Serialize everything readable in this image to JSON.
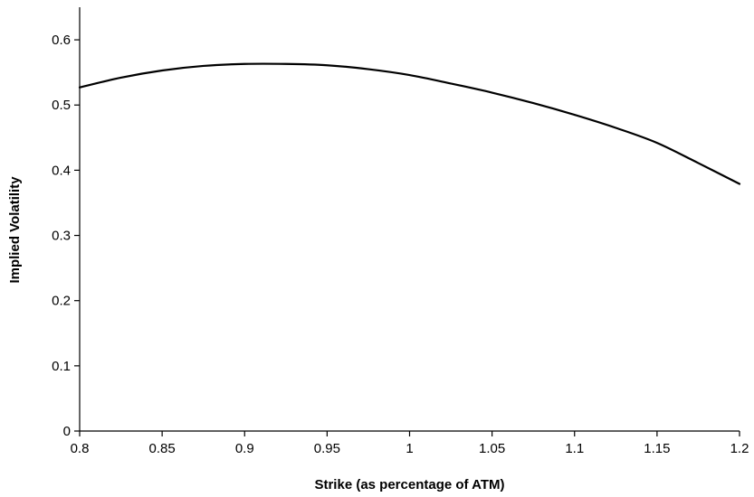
{
  "chart_data": {
    "type": "line",
    "xlabel": "Strike (as percentage of ATM)",
    "ylabel": "Implied Volatility",
    "xlim": [
      0.8,
      1.2
    ],
    "ylim": [
      0,
      0.65
    ],
    "x_ticks": [
      "0.8",
      "0.85",
      "0.9",
      "0.95",
      "1",
      "1.05",
      "1.1",
      "1.15",
      "1.2"
    ],
    "y_ticks": [
      "0",
      "0.1",
      "0.2",
      "0.3",
      "0.4",
      "0.5",
      "0.6"
    ],
    "grid": false,
    "legend": "none",
    "series": [
      {
        "color": "#000000",
        "x": [
          0.8,
          0.825,
          0.85,
          0.875,
          0.9,
          0.925,
          0.95,
          0.975,
          1.0,
          1.025,
          1.05,
          1.075,
          1.1,
          1.125,
          1.15,
          1.175,
          1.2
        ],
        "y": [
          0.527,
          0.542,
          0.553,
          0.56,
          0.563,
          0.563,
          0.561,
          0.555,
          0.546,
          0.533,
          0.519,
          0.503,
          0.485,
          0.465,
          0.442,
          0.411,
          0.379
        ]
      }
    ]
  }
}
